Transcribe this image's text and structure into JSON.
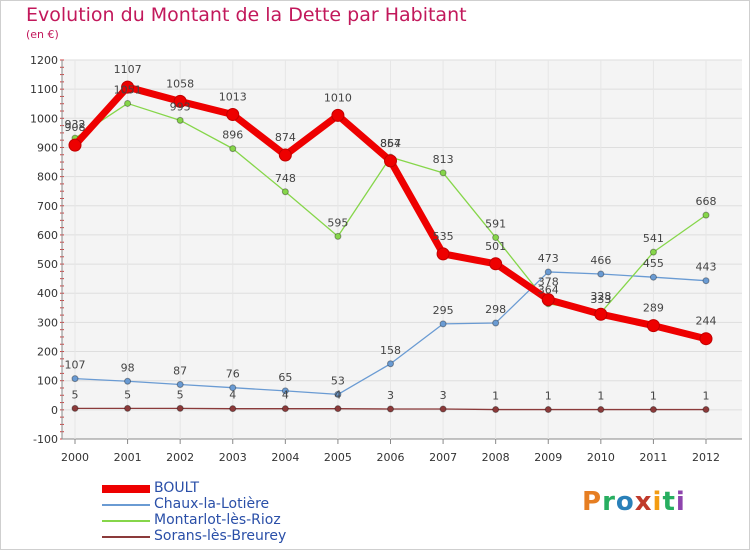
{
  "header": {
    "title": "Evolution du Montant de la Dette par Habitant",
    "unit": "(en €)"
  },
  "brand": {
    "text": "Proxiti",
    "colors": [
      "#e67e22",
      "#27ae60",
      "#2980b9",
      "#c0392b",
      "#f39c12",
      "#27ae60",
      "#8e44ad"
    ]
  },
  "chart_data": {
    "type": "line",
    "title": "Evolution du Montant de la Dette par Habitant",
    "ylabel": "(en €)",
    "xlabel": "",
    "x": [
      "2000",
      "2001",
      "2002",
      "2003",
      "2004",
      "2005",
      "2006",
      "2007",
      "2008",
      "2009",
      "2010",
      "2011",
      "2012"
    ],
    "ylim": [
      -100,
      1200
    ],
    "yticks": [
      -100,
      0,
      100,
      200,
      300,
      400,
      500,
      600,
      700,
      800,
      900,
      1000,
      1100,
      1200
    ],
    "grid": true,
    "legend_position": "bottom-left",
    "series": [
      {
        "name": "BOULT",
        "color": "#ee0000",
        "values": [
          908,
          1107,
          1058,
          1013,
          874,
          1010,
          854,
          535,
          501,
          378,
          328,
          289,
          244
        ]
      },
      {
        "name": "Chaux-la-Lotière",
        "color": "#6a9bd3",
        "values": [
          107,
          98,
          87,
          76,
          65,
          53,
          158,
          295,
          298,
          473,
          466,
          455,
          443
        ]
      },
      {
        "name": "Montarlot-lès-Rioz",
        "color": "#86d64a",
        "values": [
          932,
          1051,
          993,
          896,
          748,
          595,
          867,
          813,
          591,
          364,
          333,
          541,
          668
        ]
      },
      {
        "name": "Sorans-lès-Breurey",
        "color": "#8b3a3a",
        "values": [
          5,
          5,
          5,
          4,
          4,
          4,
          3,
          3,
          1,
          1,
          1,
          1,
          1
        ]
      }
    ]
  }
}
